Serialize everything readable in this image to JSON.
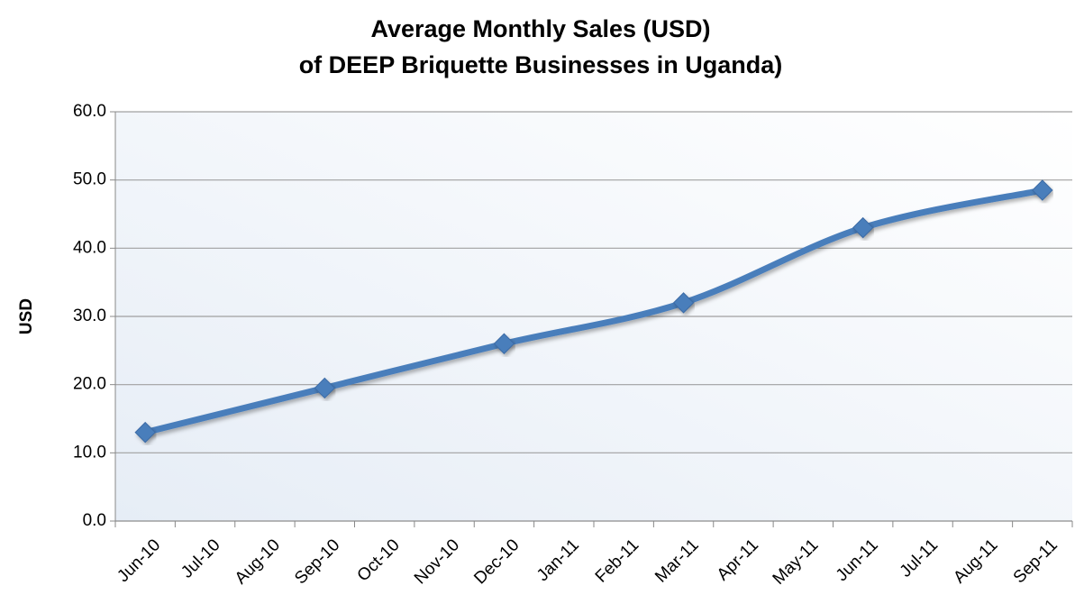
{
  "chart_data": {
    "type": "line",
    "title": [
      "Average Monthly Sales (USD)",
      "of DEEP Briquette Businesses in Uganda)"
    ],
    "y_label": "USD",
    "categories": [
      "Jun-10",
      "Jul-10",
      "Aug-10",
      "Sep-10",
      "Oct-10",
      "Nov-10",
      "Dec-10",
      "Jan-11",
      "Feb-11",
      "Mar-11",
      "Apr-11",
      "May-11",
      "Jun-11",
      "Jul-11",
      "Aug-11",
      "Sep-11"
    ],
    "series": [
      {
        "name": "Average Monthly Sales",
        "color": "#4a7ebb",
        "values": [
          13.0,
          null,
          null,
          19.5,
          null,
          null,
          26.0,
          null,
          null,
          32.0,
          null,
          null,
          43.0,
          null,
          null,
          48.5
        ]
      }
    ],
    "connect_gaps": true,
    "smooth": true,
    "ylim": [
      0,
      60
    ],
    "yticks": [
      {
        "value": 0,
        "label": "0.0"
      },
      {
        "value": 10,
        "label": "10.0"
      },
      {
        "value": 20,
        "label": "20.0"
      },
      {
        "value": 30,
        "label": "30.0"
      },
      {
        "value": 40,
        "label": "40.0"
      },
      {
        "value": 50,
        "label": "50.0"
      },
      {
        "value": 60,
        "label": "60.0"
      }
    ],
    "grid": true
  }
}
